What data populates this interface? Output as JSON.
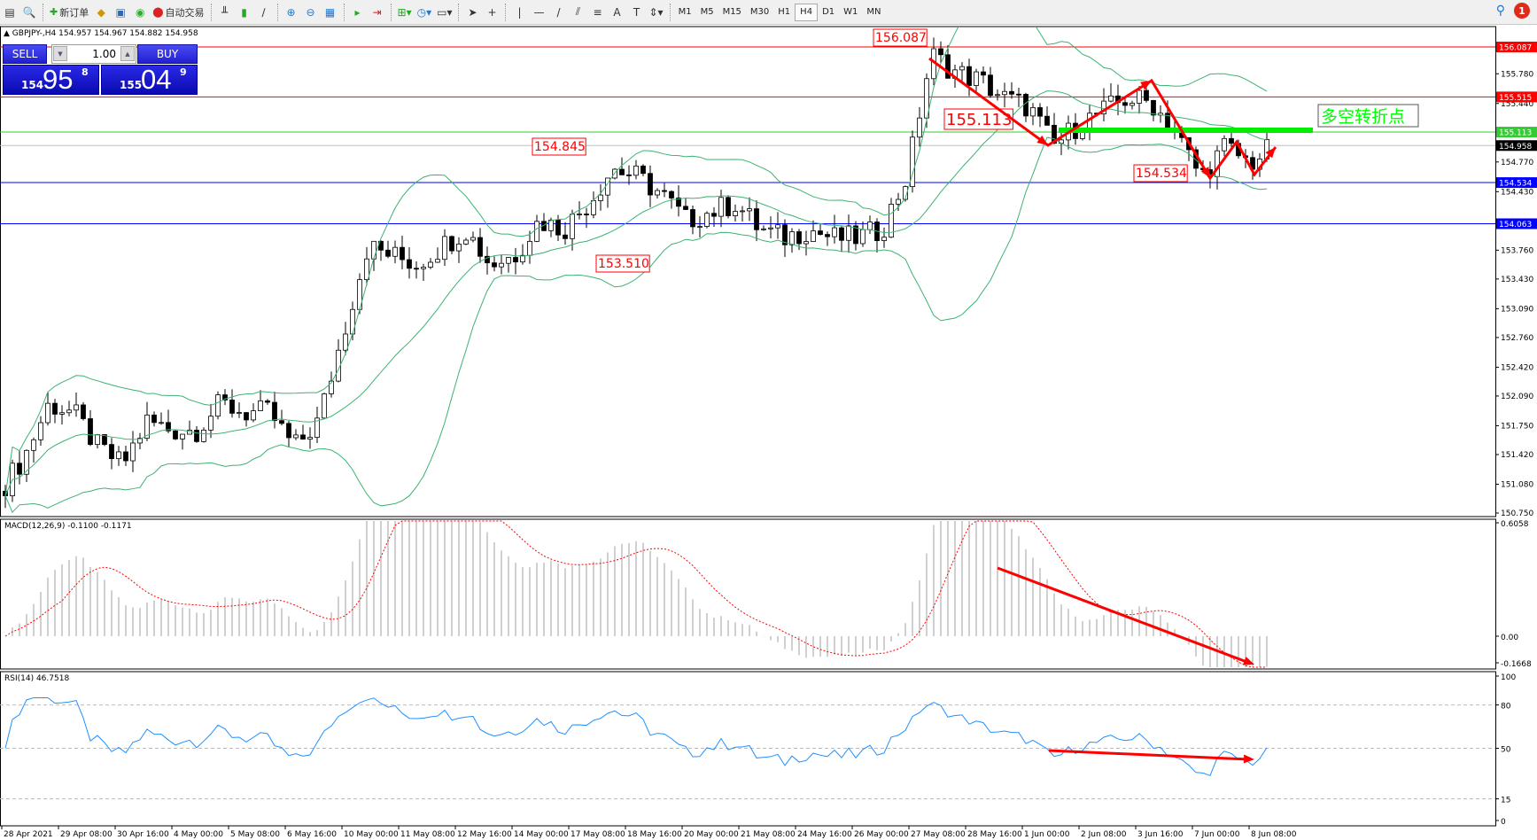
{
  "toolbar": {
    "new_order": "新订单",
    "auto_trade": "自动交易",
    "timeframes": [
      "M1",
      "M5",
      "M15",
      "M30",
      "H1",
      "H4",
      "D1",
      "W1",
      "MN"
    ],
    "active_timeframe": "H4",
    "notification_count": "1",
    "icons": [
      "new-chart-icon",
      "profiles-icon",
      "new-order-icon",
      "market-watch-icon",
      "navigator-icon",
      "signals-icon",
      "auto-trading-icon",
      "bar-chart-icon",
      "candlestick-icon",
      "line-chart-icon",
      "zoom-in-icon",
      "zoom-out-icon",
      "tile-windows-icon",
      "auto-scroll-icon",
      "chart-shift-icon",
      "indicators-icon",
      "periods-icon",
      "templates-icon",
      "cursor-icon",
      "crosshair-icon",
      "vertical-line-icon",
      "horizontal-line-icon",
      "trendline-icon",
      "fibonacci-icon",
      "grid-icon",
      "text-icon",
      "text-label-icon",
      "arrows-icon",
      "search-icon",
      "notification-icon"
    ]
  },
  "chart": {
    "symbol_info": "GBPJPY-,H4  154.957 154.967 154.882 154.958",
    "one_click": {
      "sell_label": "SELL",
      "buy_label": "BUY",
      "volume": "1.00",
      "sell_small": "154",
      "sell_big": "95",
      "sell_pip": "8",
      "buy_small": "155",
      "buy_big": "04",
      "buy_pip": "9"
    },
    "price_ticks": [
      "155.780",
      "155.440",
      "154.770",
      "154.430",
      "153.760",
      "153.430",
      "153.090",
      "152.760",
      "152.420",
      "152.090",
      "151.750",
      "151.420",
      "151.080",
      "150.750"
    ],
    "hlines": [
      {
        "price": 156.087,
        "label": "156.087",
        "color": "#ff0000"
      },
      {
        "price": 155.515,
        "label": "155.515",
        "color": "#ff0000"
      },
      {
        "price": 155.113,
        "label": "155.113",
        "color": "#32cd32"
      },
      {
        "price": 154.958,
        "label": "154.958",
        "color": "#000000",
        "line": "#c0c0c0"
      },
      {
        "price": 154.534,
        "label": "154.534",
        "color": "#0000ff"
      },
      {
        "price": 154.063,
        "label": "154.063",
        "color": "#0000ff"
      }
    ],
    "price_labels": [
      "156.087",
      "155.113",
      "154.845",
      "153.510",
      "154.534"
    ],
    "annotation_text": "多空转折点",
    "annotation_color": "#00ff00",
    "arrow_color": "#ff0000",
    "time_labels": [
      "28 Apr 2021",
      "29 Apr 08:00",
      "30 Apr 16:00",
      "4 May 00:00",
      "5 May 08:00",
      "6 May 16:00",
      "10 May 00:00",
      "11 May 08:00",
      "12 May 16:00",
      "14 May 00:00",
      "17 May 08:00",
      "18 May 16:00",
      "20 May 00:00",
      "21 May 08:00",
      "24 May 16:00",
      "26 May 00:00",
      "27 May 08:00",
      "28 May 16:00",
      "1 Jun 00:00",
      "2 Jun 08:00",
      "3 Jun 16:00",
      "7 Jun 00:00",
      "8 Jun 08:00"
    ]
  },
  "macd": {
    "label": "MACD(12,26,9) -0.1100 -0.1171",
    "ticks": [
      "0.6058",
      "0.00",
      "-0.1668"
    ]
  },
  "rsi": {
    "label": "RSI(14) 46.7518",
    "ticks": [
      "100",
      "80",
      "50",
      "15",
      "0"
    ]
  },
  "chart_data": {
    "type": "candlestick",
    "price_range": [
      150.75,
      156.087
    ],
    "close_anchors": [
      151.0,
      151.4,
      152.0,
      151.9,
      151.5,
      151.3,
      151.8,
      151.7,
      151.7,
      152.0,
      151.9,
      151.9,
      151.5,
      151.8,
      152.8,
      153.8,
      153.7,
      153.6,
      153.8,
      154.0,
      153.6,
      153.7,
      154.1,
      154.0,
      154.3,
      154.7,
      154.6,
      154.4,
      154.1,
      154.2,
      154.3,
      154.0,
      153.9,
      154.0,
      153.9,
      153.9,
      154.0,
      154.6,
      156.0,
      155.8,
      155.7,
      155.5,
      155.4,
      154.95,
      155.2,
      155.35,
      155.5,
      155.45,
      155.1,
      154.6,
      154.95,
      154.75,
      154.958
    ],
    "indicators": [
      "Bollinger Bands(20,2)",
      "MACD(12,26,9)",
      "RSI(14)"
    ]
  }
}
